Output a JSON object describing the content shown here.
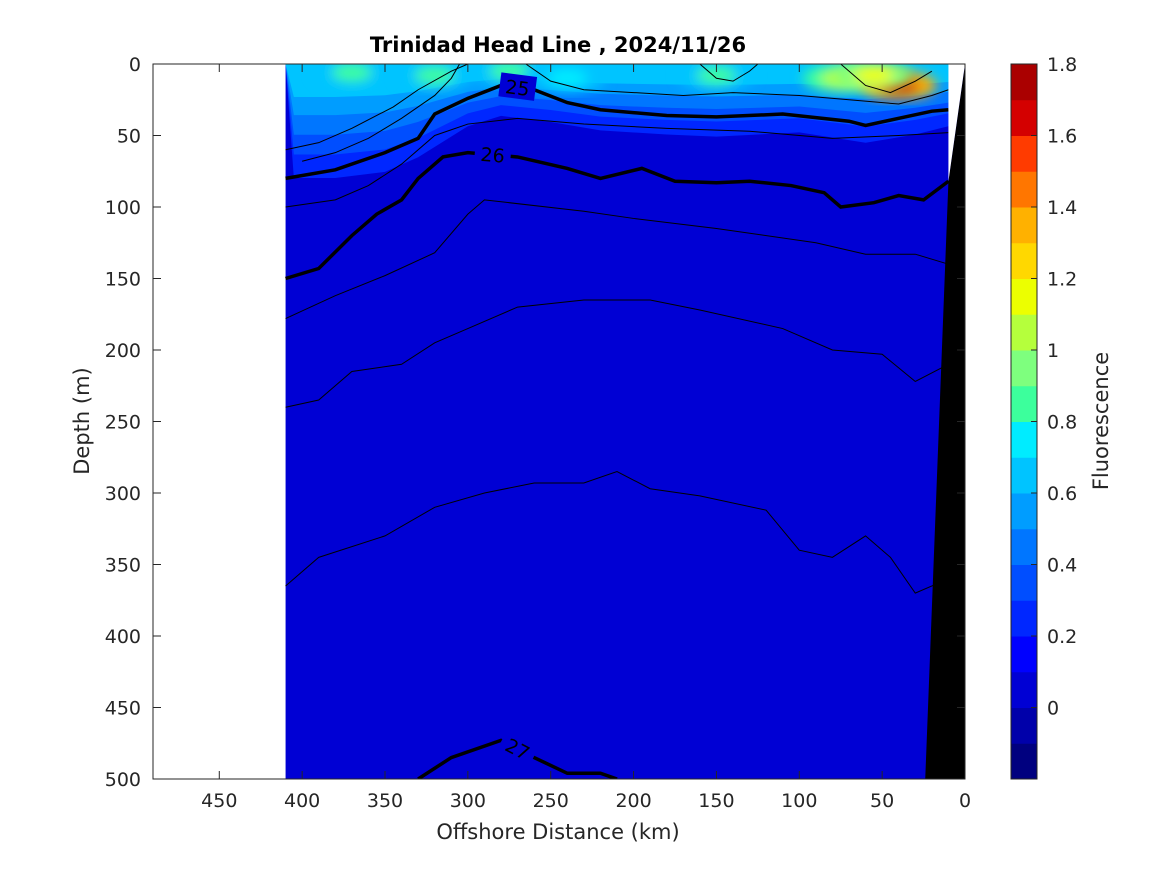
{
  "chart_data": {
    "type": "heatmap",
    "title": "Trinidad Head Line , 2024/11/26",
    "xlabel": "Offshore Distance (km)",
    "ylabel": "Depth (m)",
    "colorbar_label": "Fluorescence",
    "xlim": [
      490,
      0
    ],
    "ylim": [
      0,
      500
    ],
    "x_ticks": [
      450,
      400,
      350,
      300,
      250,
      200,
      150,
      100,
      50,
      0
    ],
    "y_ticks": [
      0,
      50,
      100,
      150,
      200,
      250,
      300,
      350,
      400,
      450,
      500
    ],
    "colorbar_ticks": [
      0,
      0.2,
      0.4,
      0.6,
      0.8,
      1,
      1.2,
      1.4,
      1.6,
      1.8
    ],
    "colorbar_range": [
      -0.2,
      1.8
    ],
    "colormap": [
      "#00007f",
      "#0000aa",
      "#0000d4",
      "#0000ff",
      "#0027ff",
      "#004eff",
      "#0076ff",
      "#009dff",
      "#00c4ff",
      "#00ecff",
      "#3cff9c",
      "#7eff7e",
      "#b5ff3c",
      "#ecff00",
      "#ffd800",
      "#ffb100",
      "#ff7600",
      "#ff3b00",
      "#d40000",
      "#aa0000"
    ],
    "data_extent_km": [
      410,
      0
    ],
    "background_fluorescence": 0.05,
    "surface_layer": {
      "depth_mixed_m": [
        {
          "x": 405,
          "d": 55
        },
        {
          "x": 380,
          "d": 55
        },
        {
          "x": 350,
          "d": 52
        },
        {
          "x": 330,
          "d": 45
        },
        {
          "x": 300,
          "d": 30
        },
        {
          "x": 280,
          "d": 25
        },
        {
          "x": 250,
          "d": 28
        },
        {
          "x": 220,
          "d": 32
        },
        {
          "x": 180,
          "d": 34
        },
        {
          "x": 150,
          "d": 35
        },
        {
          "x": 100,
          "d": 33
        },
        {
          "x": 60,
          "d": 38
        },
        {
          "x": 30,
          "d": 34
        },
        {
          "x": 10,
          "d": 30
        }
      ],
      "high_patches": [
        {
          "x": 370,
          "d": 6,
          "v": 0.85
        },
        {
          "x": 320,
          "d": 8,
          "v": 0.8
        },
        {
          "x": 275,
          "d": 5,
          "v": 0.85
        },
        {
          "x": 240,
          "d": 10,
          "v": 0.75
        },
        {
          "x": 150,
          "d": 8,
          "v": 0.8
        },
        {
          "x": 75,
          "d": 10,
          "v": 1.05
        },
        {
          "x": 40,
          "d": 15,
          "v": 1.65
        },
        {
          "x": 55,
          "d": 8,
          "v": 1.15
        }
      ]
    },
    "sigma_contours_bold": [
      {
        "label": "25",
        "points": [
          [
            410,
            80
          ],
          [
            380,
            74
          ],
          [
            350,
            62
          ],
          [
            330,
            52
          ],
          [
            320,
            35
          ],
          [
            300,
            24
          ],
          [
            280,
            15
          ],
          [
            260,
            18
          ],
          [
            240,
            27
          ],
          [
            220,
            32
          ],
          [
            180,
            36
          ],
          [
            150,
            37
          ],
          [
            110,
            35
          ],
          [
            70,
            40
          ],
          [
            60,
            43
          ],
          [
            40,
            38
          ],
          [
            20,
            33
          ],
          [
            10,
            32
          ]
        ]
      },
      {
        "label": "26",
        "points": [
          [
            410,
            150
          ],
          [
            390,
            143
          ],
          [
            370,
            120
          ],
          [
            355,
            105
          ],
          [
            340,
            95
          ],
          [
            330,
            80
          ],
          [
            315,
            65
          ],
          [
            300,
            62
          ],
          [
            270,
            65
          ],
          [
            240,
            73
          ],
          [
            220,
            80
          ],
          [
            195,
            73
          ],
          [
            175,
            82
          ],
          [
            150,
            83
          ],
          [
            130,
            82
          ],
          [
            105,
            85
          ],
          [
            85,
            90
          ],
          [
            75,
            100
          ],
          [
            55,
            97
          ],
          [
            40,
            92
          ],
          [
            25,
            95
          ],
          [
            10,
            82
          ]
        ]
      },
      {
        "label": "27",
        "points": [
          [
            330,
            500
          ],
          [
            310,
            485
          ],
          [
            280,
            473
          ],
          [
            260,
            485
          ],
          [
            240,
            496
          ],
          [
            220,
            496
          ],
          [
            210,
            500
          ]
        ]
      }
    ],
    "sigma_contours_thin": [
      [
        [
          410,
          100
        ],
        [
          380,
          95
        ],
        [
          360,
          85
        ],
        [
          340,
          70
        ],
        [
          320,
          50
        ],
        [
          300,
          42
        ],
        [
          270,
          38
        ],
        [
          230,
          42
        ],
        [
          180,
          45
        ],
        [
          130,
          47
        ],
        [
          80,
          52
        ],
        [
          40,
          50
        ],
        [
          10,
          48
        ]
      ],
      [
        [
          410,
          178
        ],
        [
          380,
          162
        ],
        [
          350,
          148
        ],
        [
          320,
          132
        ],
        [
          300,
          105
        ],
        [
          290,
          95
        ],
        [
          230,
          103
        ],
        [
          200,
          108
        ],
        [
          150,
          115
        ],
        [
          90,
          125
        ],
        [
          60,
          133
        ],
        [
          30,
          133
        ],
        [
          10,
          140
        ]
      ],
      [
        [
          410,
          240
        ],
        [
          390,
          235
        ],
        [
          370,
          215
        ],
        [
          340,
          210
        ],
        [
          320,
          195
        ],
        [
          300,
          185
        ],
        [
          270,
          170
        ],
        [
          230,
          165
        ],
        [
          190,
          165
        ],
        [
          160,
          172
        ],
        [
          110,
          185
        ],
        [
          80,
          200
        ],
        [
          50,
          203
        ],
        [
          30,
          222
        ],
        [
          10,
          210
        ]
      ],
      [
        [
          410,
          365
        ],
        [
          390,
          345
        ],
        [
          350,
          330
        ],
        [
          320,
          310
        ],
        [
          290,
          300
        ],
        [
          260,
          293
        ],
        [
          230,
          293
        ],
        [
          210,
          285
        ],
        [
          190,
          297
        ],
        [
          160,
          302
        ],
        [
          120,
          312
        ],
        [
          100,
          340
        ],
        [
          80,
          345
        ],
        [
          60,
          330
        ],
        [
          45,
          345
        ],
        [
          30,
          370
        ],
        [
          10,
          360
        ]
      ],
      [
        [
          410,
          60
        ],
        [
          390,
          55
        ],
        [
          370,
          45
        ],
        [
          345,
          30
        ],
        [
          330,
          18
        ],
        [
          310,
          5
        ],
        [
          300,
          0
        ]
      ],
      [
        [
          400,
          68
        ],
        [
          380,
          62
        ],
        [
          360,
          52
        ],
        [
          340,
          38
        ],
        [
          320,
          22
        ],
        [
          310,
          10
        ],
        [
          305,
          0
        ]
      ],
      [
        [
          265,
          0
        ],
        [
          250,
          12
        ],
        [
          230,
          18
        ],
        [
          200,
          20
        ],
        [
          170,
          22
        ],
        [
          140,
          20
        ],
        [
          100,
          22
        ],
        [
          70,
          25
        ],
        [
          40,
          28
        ],
        [
          20,
          22
        ],
        [
          10,
          18
        ]
      ],
      [
        [
          160,
          0
        ],
        [
          150,
          10
        ],
        [
          140,
          12
        ],
        [
          130,
          5
        ],
        [
          125,
          0
        ]
      ],
      [
        [
          75,
          0
        ],
        [
          60,
          15
        ],
        [
          45,
          20
        ],
        [
          30,
          12
        ],
        [
          20,
          5
        ]
      ]
    ]
  }
}
